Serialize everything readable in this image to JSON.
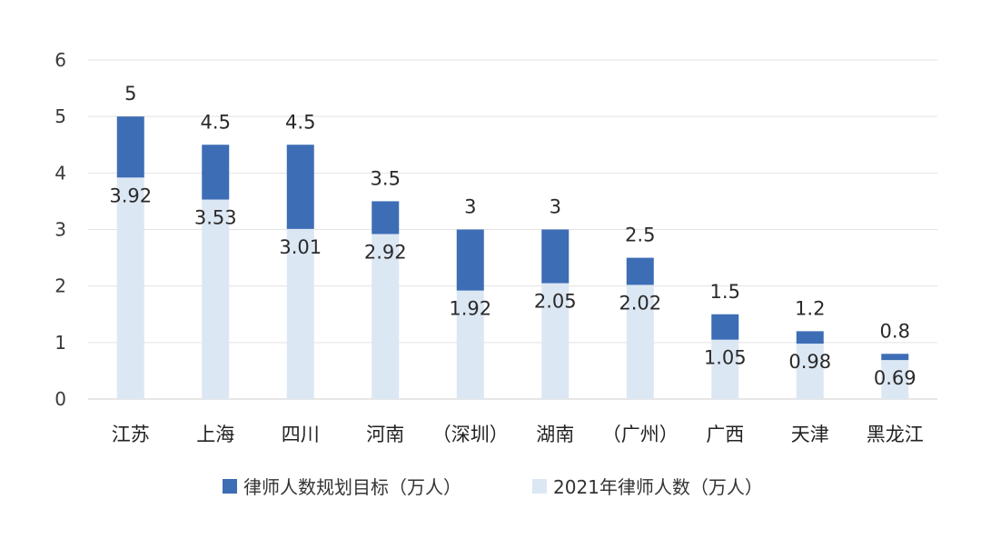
{
  "chart_data": {
    "type": "bar",
    "categories": [
      "江苏",
      "上海",
      "四川",
      "河南",
      "（深圳）",
      "湖南",
      "（广州）",
      "广西",
      "天津",
      "黑龙江"
    ],
    "series": [
      {
        "name": "律师人数规划目标（万人）",
        "values": [
          5,
          4.5,
          4.5,
          3.5,
          3,
          3,
          2.5,
          1.5,
          1.2,
          0.8
        ],
        "color": "#3d6db5"
      },
      {
        "name": "2021年律师人数（万人）",
        "values": [
          3.92,
          3.53,
          3.01,
          2.92,
          1.92,
          2.05,
          2.02,
          1.05,
          0.98,
          0.69
        ],
        "color": "#dce7f4"
      }
    ],
    "target_labels": [
      "5",
      "4.5",
      "4.5",
      "3.5",
      "3",
      "3",
      "2.5",
      "1.5",
      "1.2",
      "0.8"
    ],
    "actual_labels": [
      "3.92",
      "3.53",
      "3.01",
      "2.92",
      "1.92",
      "2.05",
      "2.02",
      "1.05",
      "0.98",
      "0.69"
    ],
    "y_ticks": [
      "0",
      "1",
      "2",
      "3",
      "4",
      "5",
      "6"
    ],
    "ylim": [
      0,
      6
    ],
    "grid": true,
    "legend_position": "bottom",
    "title": "",
    "xlabel": "",
    "ylabel": ""
  },
  "colors": {
    "gridline": "#e3e3e3",
    "axis": "#cfcfcf"
  }
}
